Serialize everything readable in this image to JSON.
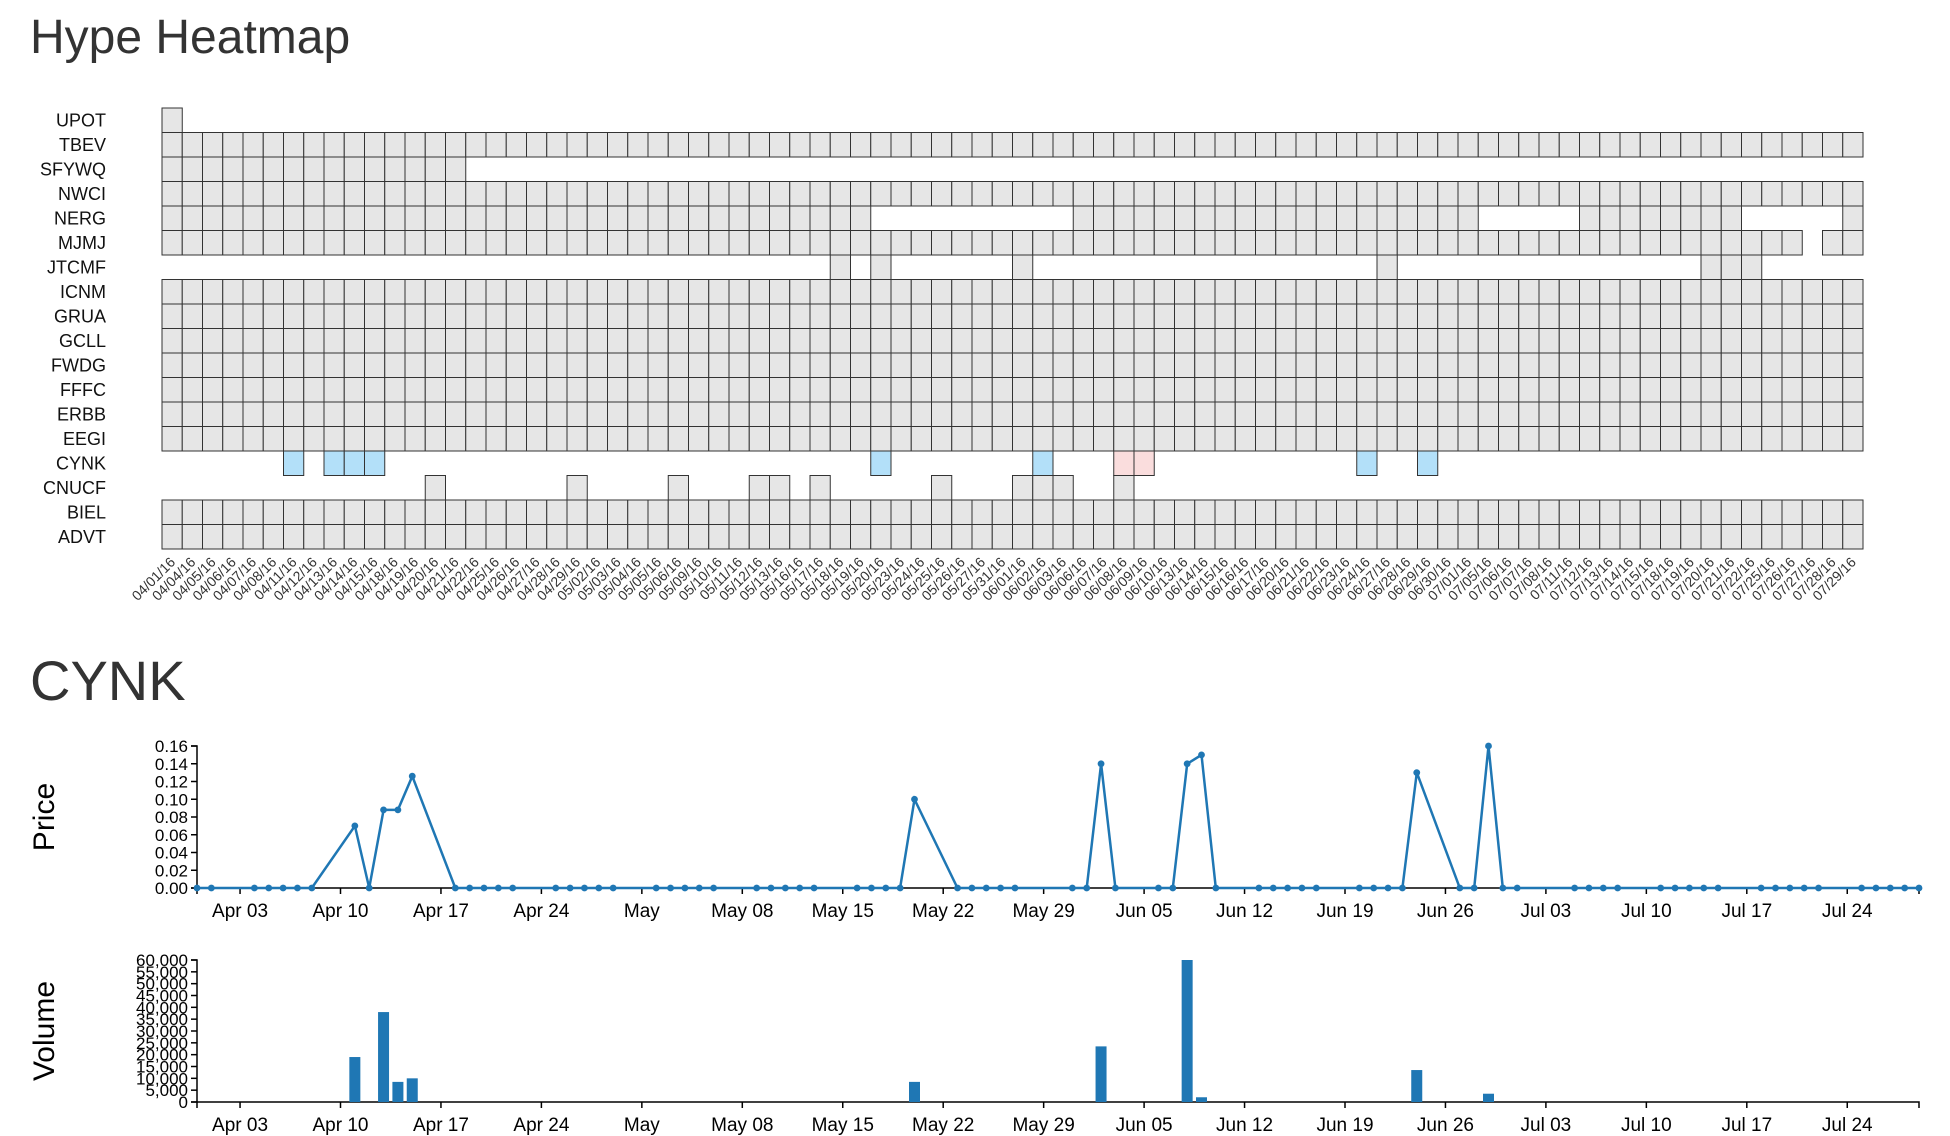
{
  "headings": {
    "heatmap_title": "Hype Heatmap",
    "detail_title": "CYNK"
  },
  "colors": {
    "cell_fill": "#e6e6e6",
    "cell_stroke": "#333333",
    "positive": "#b3e0f9",
    "negative": "#fadddd",
    "series": "#1f77b4"
  },
  "chart_data": [
    {
      "type": "heatmap",
      "title": "Hype Heatmap",
      "rows": [
        "UPOT",
        "TBEV",
        "SFYWQ",
        "NWCI",
        "NERG",
        "MJMJ",
        "JTCMF",
        "ICNM",
        "GRUA",
        "GCLL",
        "FWDG",
        "FFFC",
        "ERBB",
        "EEGI",
        "CYNK",
        "CNUCF",
        "BIEL",
        "ADVT"
      ],
      "dates": [
        "04/01/16",
        "04/04/16",
        "04/05/16",
        "04/06/16",
        "04/07/16",
        "04/08/16",
        "04/11/16",
        "04/12/16",
        "04/13/16",
        "04/14/16",
        "04/15/16",
        "04/18/16",
        "04/19/16",
        "04/20/16",
        "04/21/16",
        "04/22/16",
        "04/25/16",
        "04/26/16",
        "04/27/16",
        "04/28/16",
        "04/29/16",
        "05/02/16",
        "05/03/16",
        "05/04/16",
        "05/05/16",
        "05/06/16",
        "05/09/16",
        "05/10/16",
        "05/11/16",
        "05/12/16",
        "05/13/16",
        "05/16/16",
        "05/17/16",
        "05/18/16",
        "05/19/16",
        "05/20/16",
        "05/23/16",
        "05/24/16",
        "05/25/16",
        "05/26/16",
        "05/27/16",
        "05/31/16",
        "06/01/16",
        "06/02/16",
        "06/03/16",
        "06/06/16",
        "06/07/16",
        "06/08/16",
        "06/09/16",
        "06/10/16",
        "06/13/16",
        "06/14/16",
        "06/15/16",
        "06/16/16",
        "06/17/16",
        "06/20/16",
        "06/21/16",
        "06/22/16",
        "06/23/16",
        "06/24/16",
        "06/27/16",
        "06/28/16",
        "06/29/16",
        "06/30/16",
        "07/01/16",
        "07/05/16",
        "07/06/16",
        "07/07/16",
        "07/08/16",
        "07/11/16",
        "07/12/16",
        "07/13/16",
        "07/14/16",
        "07/15/16",
        "07/18/16",
        "07/19/16",
        "07/20/16",
        "07/21/16",
        "07/22/16",
        "07/25/16",
        "07/26/16",
        "07/27/16",
        "07/28/16",
        "07/29/16"
      ],
      "cells": [
        {
          "row": "UPOT",
          "present": [
            [
              0,
              0
            ]
          ]
        },
        {
          "row": "TBEV",
          "present": [
            [
              0,
              83
            ]
          ]
        },
        {
          "row": "SFYWQ",
          "present": [
            [
              0,
              14
            ]
          ]
        },
        {
          "row": "NWCI",
          "present": [
            [
              0,
              83
            ]
          ]
        },
        {
          "row": "NERG",
          "present": [
            [
              0,
              34
            ],
            [
              45,
              64
            ],
            [
              70,
              77
            ],
            [
              83,
              83
            ]
          ]
        },
        {
          "row": "MJMJ",
          "present": [
            [
              0,
              80
            ],
            [
              82,
              83
            ]
          ]
        },
        {
          "row": "JTCMF",
          "present": [
            [
              33,
              33
            ],
            [
              35,
              35
            ],
            [
              42,
              42
            ],
            [
              60,
              60
            ],
            [
              76,
              78
            ]
          ]
        },
        {
          "row": "ICNM",
          "present": [
            [
              0,
              83
            ]
          ]
        },
        {
          "row": "GRUA",
          "present": [
            [
              0,
              83
            ]
          ]
        },
        {
          "row": "GCLL",
          "present": [
            [
              0,
              83
            ]
          ]
        },
        {
          "row": "FWDG",
          "present": [
            [
              0,
              83
            ]
          ]
        },
        {
          "row": "FFFC",
          "present": [
            [
              0,
              83
            ]
          ]
        },
        {
          "row": "ERBB",
          "present": [
            [
              0,
              83
            ]
          ]
        },
        {
          "row": "EEGI",
          "present": [
            [
              0,
              83
            ]
          ]
        },
        {
          "row": "CYNK",
          "present": [
            [
              6,
              6
            ],
            [
              8,
              10
            ],
            [
              35,
              35
            ],
            [
              43,
              43
            ],
            [
              47,
              48
            ],
            [
              59,
              59
            ],
            [
              62,
              62
            ]
          ],
          "positive": [
            6,
            8,
            9,
            10,
            35,
            43,
            59,
            62
          ],
          "negative": [
            47,
            48
          ]
        },
        {
          "row": "CNUCF",
          "present": [
            [
              13,
              13
            ],
            [
              20,
              20
            ],
            [
              25,
              25
            ],
            [
              29,
              30
            ],
            [
              32,
              32
            ],
            [
              38,
              38
            ],
            [
              42,
              44
            ],
            [
              47,
              47
            ]
          ]
        },
        {
          "row": "BIEL",
          "present": [
            [
              0,
              83
            ]
          ]
        },
        {
          "row": "ADVT",
          "present": [
            [
              0,
              83
            ]
          ]
        }
      ]
    },
    {
      "type": "line",
      "ylabel": "Price",
      "xlim": [
        "2016-03-31",
        "2016-07-29"
      ],
      "ylim": [
        0,
        0.16
      ],
      "y_ticks": [
        "0.00",
        "0.02",
        "0.04",
        "0.06",
        "0.08",
        "0.10",
        "0.12",
        "0.14",
        "0.16"
      ],
      "x_ticks": [
        {
          "date": "2016-04-03",
          "label": "Apr 03"
        },
        {
          "date": "2016-04-10",
          "label": "Apr 10"
        },
        {
          "date": "2016-04-17",
          "label": "Apr 17"
        },
        {
          "date": "2016-04-24",
          "label": "Apr 24"
        },
        {
          "date": "2016-05-01",
          "label": "May"
        },
        {
          "date": "2016-05-08",
          "label": "May 08"
        },
        {
          "date": "2016-05-15",
          "label": "May 15"
        },
        {
          "date": "2016-05-22",
          "label": "May 22"
        },
        {
          "date": "2016-05-29",
          "label": "May 29"
        },
        {
          "date": "2016-06-05",
          "label": "Jun 05"
        },
        {
          "date": "2016-06-12",
          "label": "Jun 12"
        },
        {
          "date": "2016-06-19",
          "label": "Jun 19"
        },
        {
          "date": "2016-06-26",
          "label": "Jun 26"
        },
        {
          "date": "2016-07-03",
          "label": "Jul 03"
        },
        {
          "date": "2016-07-10",
          "label": "Jul 10"
        },
        {
          "date": "2016-07-17",
          "label": "Jul 17"
        },
        {
          "date": "2016-07-24",
          "label": "Jul 24"
        }
      ],
      "points": [
        [
          "2016-03-31",
          0
        ],
        [
          "2016-04-01",
          0
        ],
        [
          "2016-04-04",
          0
        ],
        [
          "2016-04-05",
          0
        ],
        [
          "2016-04-06",
          0
        ],
        [
          "2016-04-07",
          0
        ],
        [
          "2016-04-08",
          0
        ],
        [
          "2016-04-11",
          0.07
        ],
        [
          "2016-04-12",
          0
        ],
        [
          "2016-04-13",
          0.088
        ],
        [
          "2016-04-14",
          0.088
        ],
        [
          "2016-04-15",
          0.126
        ],
        [
          "2016-04-18",
          0
        ],
        [
          "2016-04-19",
          0
        ],
        [
          "2016-04-20",
          0
        ],
        [
          "2016-04-21",
          0
        ],
        [
          "2016-04-22",
          0
        ],
        [
          "2016-04-25",
          0
        ],
        [
          "2016-04-26",
          0
        ],
        [
          "2016-04-27",
          0
        ],
        [
          "2016-04-28",
          0
        ],
        [
          "2016-04-29",
          0
        ],
        [
          "2016-05-02",
          0
        ],
        [
          "2016-05-03",
          0
        ],
        [
          "2016-05-04",
          0
        ],
        [
          "2016-05-05",
          0
        ],
        [
          "2016-05-06",
          0
        ],
        [
          "2016-05-09",
          0
        ],
        [
          "2016-05-10",
          0
        ],
        [
          "2016-05-11",
          0
        ],
        [
          "2016-05-12",
          0
        ],
        [
          "2016-05-13",
          0
        ],
        [
          "2016-05-16",
          0
        ],
        [
          "2016-05-17",
          0
        ],
        [
          "2016-05-18",
          0
        ],
        [
          "2016-05-19",
          0
        ],
        [
          "2016-05-20",
          0.1
        ],
        [
          "2016-05-23",
          0
        ],
        [
          "2016-05-24",
          0
        ],
        [
          "2016-05-25",
          0
        ],
        [
          "2016-05-26",
          0
        ],
        [
          "2016-05-27",
          0
        ],
        [
          "2016-05-31",
          0
        ],
        [
          "2016-06-01",
          0
        ],
        [
          "2016-06-02",
          0.14
        ],
        [
          "2016-06-03",
          0
        ],
        [
          "2016-06-06",
          0
        ],
        [
          "2016-06-07",
          0
        ],
        [
          "2016-06-08",
          0.14
        ],
        [
          "2016-06-09",
          0.15
        ],
        [
          "2016-06-10",
          0
        ],
        [
          "2016-06-13",
          0
        ],
        [
          "2016-06-14",
          0
        ],
        [
          "2016-06-15",
          0
        ],
        [
          "2016-06-16",
          0
        ],
        [
          "2016-06-17",
          0
        ],
        [
          "2016-06-20",
          0
        ],
        [
          "2016-06-21",
          0
        ],
        [
          "2016-06-22",
          0
        ],
        [
          "2016-06-23",
          0
        ],
        [
          "2016-06-24",
          0.13
        ],
        [
          "2016-06-27",
          0
        ],
        [
          "2016-06-28",
          0
        ],
        [
          "2016-06-29",
          0.16
        ],
        [
          "2016-06-30",
          0
        ],
        [
          "2016-07-01",
          0
        ],
        [
          "2016-07-05",
          0
        ],
        [
          "2016-07-06",
          0
        ],
        [
          "2016-07-07",
          0
        ],
        [
          "2016-07-08",
          0
        ],
        [
          "2016-07-11",
          0
        ],
        [
          "2016-07-12",
          0
        ],
        [
          "2016-07-13",
          0
        ],
        [
          "2016-07-14",
          0
        ],
        [
          "2016-07-15",
          0
        ],
        [
          "2016-07-18",
          0
        ],
        [
          "2016-07-19",
          0
        ],
        [
          "2016-07-20",
          0
        ],
        [
          "2016-07-21",
          0
        ],
        [
          "2016-07-22",
          0
        ],
        [
          "2016-07-25",
          0
        ],
        [
          "2016-07-26",
          0
        ],
        [
          "2016-07-27",
          0
        ],
        [
          "2016-07-28",
          0
        ],
        [
          "2016-07-29",
          0
        ]
      ]
    },
    {
      "type": "bar",
      "ylabel": "Volume",
      "xlim": [
        "2016-03-31",
        "2016-07-29"
      ],
      "ylim": [
        0,
        60000
      ],
      "y_ticks": [
        "0",
        "5,000",
        "10,000",
        "15,000",
        "20,000",
        "25,000",
        "30,000",
        "35,000",
        "40,000",
        "45,000",
        "50,000",
        "55,000",
        "60,000"
      ],
      "x_ticks": [
        {
          "date": "2016-04-03",
          "label": "Apr 03"
        },
        {
          "date": "2016-04-10",
          "label": "Apr 10"
        },
        {
          "date": "2016-04-17",
          "label": "Apr 17"
        },
        {
          "date": "2016-04-24",
          "label": "Apr 24"
        },
        {
          "date": "2016-05-01",
          "label": "May"
        },
        {
          "date": "2016-05-08",
          "label": "May 08"
        },
        {
          "date": "2016-05-15",
          "label": "May 15"
        },
        {
          "date": "2016-05-22",
          "label": "May 22"
        },
        {
          "date": "2016-05-29",
          "label": "May 29"
        },
        {
          "date": "2016-06-05",
          "label": "Jun 05"
        },
        {
          "date": "2016-06-12",
          "label": "Jun 12"
        },
        {
          "date": "2016-06-19",
          "label": "Jun 19"
        },
        {
          "date": "2016-06-26",
          "label": "Jun 26"
        },
        {
          "date": "2016-07-03",
          "label": "Jul 03"
        },
        {
          "date": "2016-07-10",
          "label": "Jul 10"
        },
        {
          "date": "2016-07-17",
          "label": "Jul 17"
        },
        {
          "date": "2016-07-24",
          "label": "Jul 24"
        }
      ],
      "bars": [
        [
          "2016-04-11",
          19000
        ],
        [
          "2016-04-13",
          38000
        ],
        [
          "2016-04-14",
          8500
        ],
        [
          "2016-04-15",
          10000
        ],
        [
          "2016-05-20",
          8500
        ],
        [
          "2016-06-02",
          23500
        ],
        [
          "2016-06-08",
          60000
        ],
        [
          "2016-06-09",
          2000
        ],
        [
          "2016-06-24",
          13500
        ],
        [
          "2016-06-29",
          3500
        ]
      ]
    }
  ]
}
